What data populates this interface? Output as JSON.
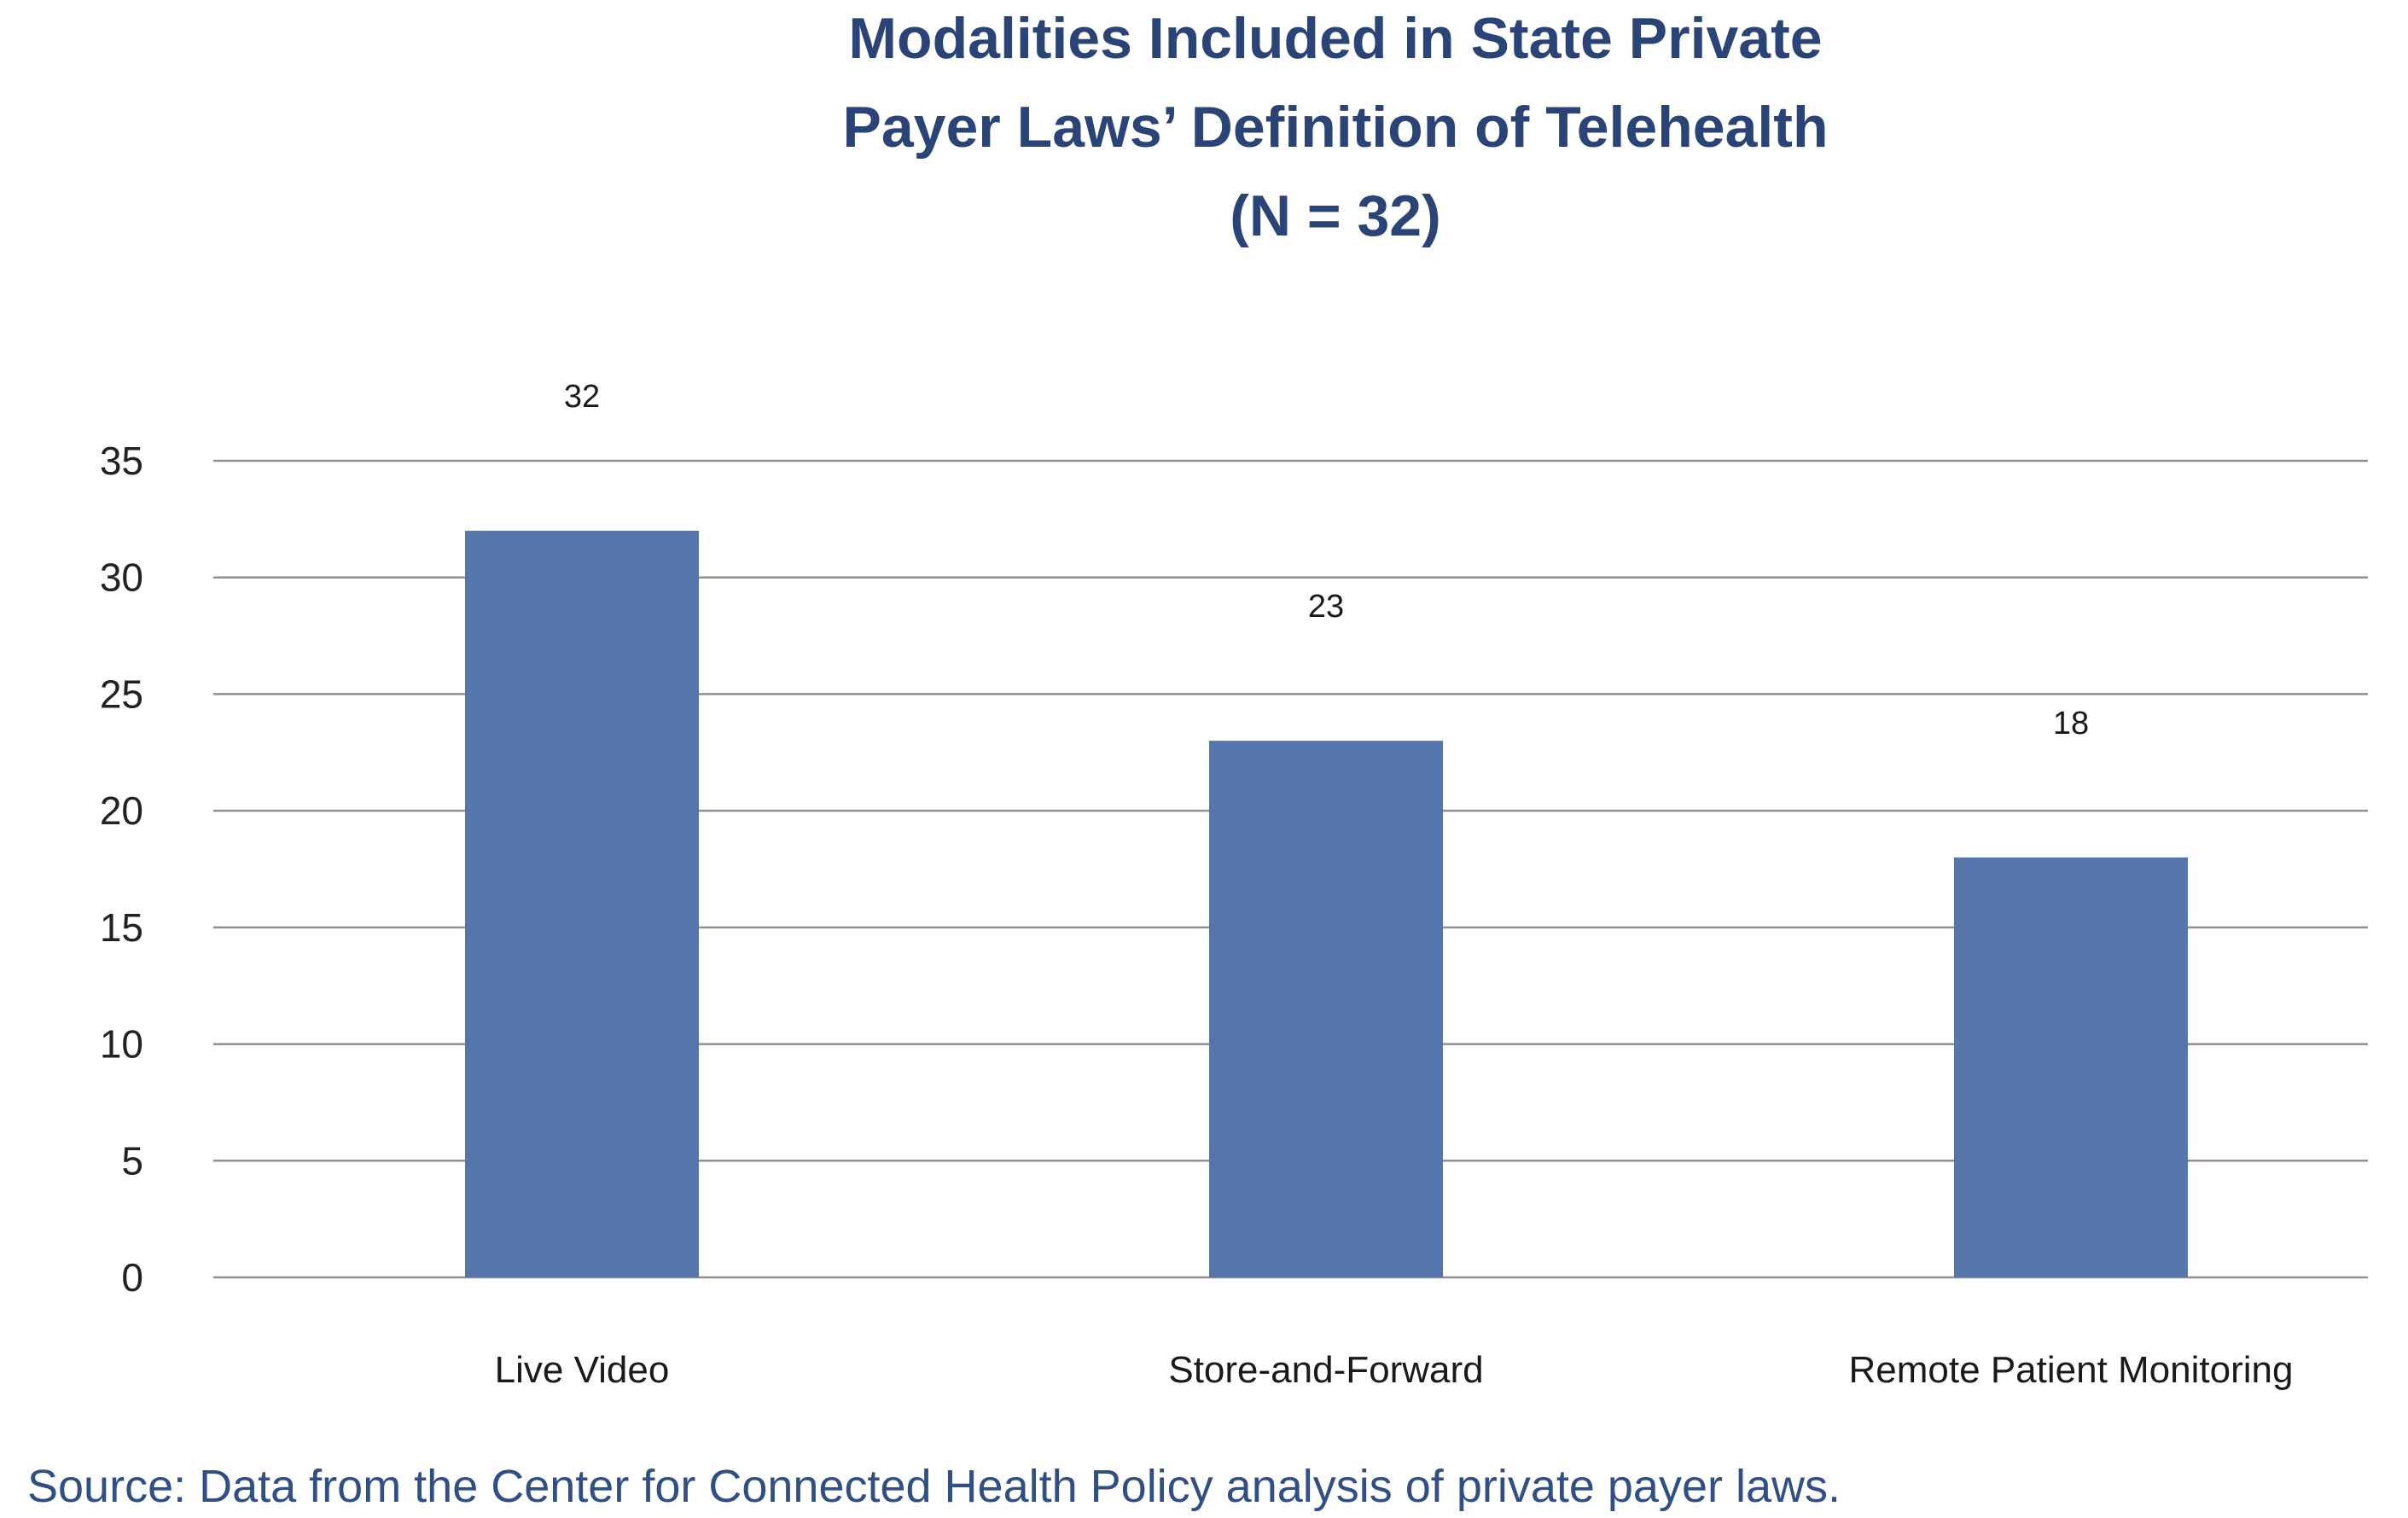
{
  "chart_data": {
    "type": "bar",
    "title_lines": [
      "Modalities Included in State Private",
      "Payer Laws’ Definition of Telehealth",
      "(N = 32)"
    ],
    "categories": [
      "Live Video",
      "Store-and-Forward",
      "Remote Patient Monitoring"
    ],
    "values": [
      32,
      23,
      18
    ],
    "value_labels": [
      "32",
      "23",
      "18"
    ],
    "xlabel": "",
    "ylabel": "",
    "ylim": [
      0,
      35
    ],
    "y_ticks": [
      0,
      5,
      10,
      15,
      20,
      25,
      30,
      35
    ],
    "y_tick_labels": [
      "0",
      "5",
      "10",
      "15",
      "20",
      "25",
      "30",
      "35"
    ],
    "grid": true,
    "legend": "none",
    "colors": {
      "bar": "#5576aa",
      "title": "#2a4478",
      "source": "#2f4f86",
      "gridline": "#8f8f8f"
    },
    "source": "Source: Data from the Center for Connected Health Policy analysis of private payer laws."
  }
}
